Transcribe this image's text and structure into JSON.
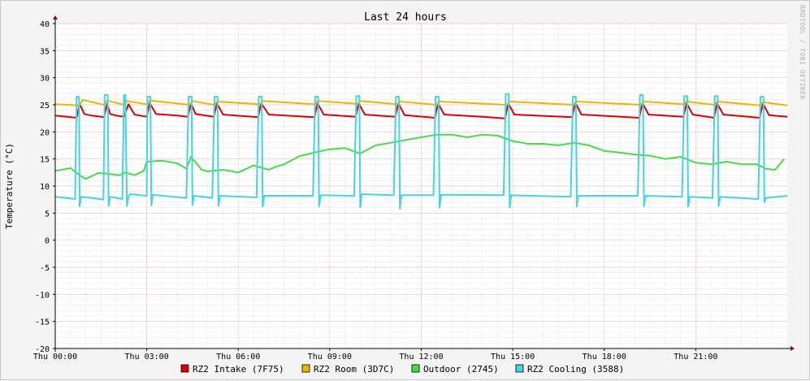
{
  "chart_data": {
    "type": "line",
    "title": "Last 24 hours",
    "ylabel": "Temperature (°C)",
    "xlabel": "",
    "ylim": [
      -20,
      40
    ],
    "xlim_hours": [
      0,
      24
    ],
    "y_ticks": [
      40,
      35,
      30,
      25,
      20,
      15,
      10,
      5,
      0,
      -5,
      -10,
      -15,
      -20
    ],
    "x_ticks": [
      {
        "h": 0,
        "label": "Thu 00:00"
      },
      {
        "h": 3,
        "label": "Thu 03:00"
      },
      {
        "h": 6,
        "label": "Thu 06:00"
      },
      {
        "h": 9,
        "label": "Thu 09:00"
      },
      {
        "h": 12,
        "label": "Thu 12:00"
      },
      {
        "h": 15,
        "label": "Thu 15:00"
      },
      {
        "h": 18,
        "label": "Thu 18:00"
      },
      {
        "h": 21,
        "label": "Thu 21:00"
      }
    ],
    "grid": true,
    "legend_position": "bottom",
    "watermark": "RRDTOOL / TOBI OETIKER",
    "defrost_cycles_hours": [
      0.72,
      1.62,
      2.27,
      3.02,
      4.37,
      5.22,
      6.67,
      8.52,
      9.87,
      11.17,
      12.47,
      14.77,
      16.97,
      19.17,
      20.62,
      21.62,
      23.12
    ],
    "series": [
      {
        "name": "RZ2 Intake (7F75)",
        "color": "#e00000",
        "x": [
          0,
          0.7,
          0.8,
          0.95,
          1.2,
          1.6,
          1.7,
          1.8,
          2.0,
          2.25,
          2.4,
          2.6,
          3.0,
          3.1,
          3.3,
          4.0,
          4.35,
          4.45,
          4.6,
          5.2,
          5.3,
          5.5,
          6.2,
          6.65,
          6.75,
          7.0,
          8.5,
          8.6,
          8.8,
          9.85,
          9.95,
          10.15,
          11.15,
          11.25,
          11.45,
          12.45,
          12.55,
          12.75,
          14.0,
          14.75,
          14.85,
          15.05,
          16.95,
          17.05,
          17.25,
          19.15,
          19.25,
          19.45,
          20.6,
          20.7,
          20.9,
          21.6,
          21.7,
          21.9,
          23.1,
          23.2,
          23.4,
          24.0
        ],
        "y": [
          23.0,
          22.6,
          25.2,
          23.3,
          23.0,
          22.7,
          25.2,
          23.3,
          23.0,
          22.8,
          25.1,
          23.2,
          22.8,
          25.3,
          23.3,
          23.0,
          22.8,
          25.3,
          23.3,
          22.8,
          25.3,
          23.2,
          22.9,
          22.7,
          25.3,
          23.2,
          22.7,
          25.3,
          23.2,
          22.8,
          25.3,
          23.2,
          22.8,
          25.3,
          23.1,
          22.6,
          25.3,
          23.2,
          22.8,
          22.5,
          25.3,
          23.2,
          22.7,
          25.4,
          23.2,
          22.6,
          25.4,
          23.2,
          22.8,
          25.3,
          23.2,
          22.6,
          25.3,
          23.2,
          22.6,
          25.3,
          23.1,
          22.8
        ]
      },
      {
        "name": "RZ2 Room (3D7C)",
        "color": "#e8b800",
        "x": [
          0,
          0.8,
          0.9,
          1.6,
          1.7,
          2.25,
          2.35,
          3.0,
          3.1,
          4.4,
          4.5,
          5.2,
          5.3,
          6.7,
          6.8,
          8.5,
          8.6,
          9.9,
          10.0,
          11.2,
          11.3,
          12.5,
          12.6,
          14.8,
          14.9,
          17.0,
          17.1,
          19.2,
          19.3,
          20.6,
          20.7,
          21.6,
          21.7,
          23.1,
          23.2,
          24.0
        ],
        "y": [
          25.1,
          24.9,
          25.9,
          25.0,
          25.8,
          25.0,
          25.7,
          25.1,
          25.8,
          25.0,
          25.7,
          25.0,
          25.6,
          25.1,
          25.7,
          25.1,
          25.7,
          25.2,
          25.7,
          25.1,
          25.6,
          25.0,
          25.6,
          25.0,
          25.6,
          25.0,
          25.6,
          25.0,
          25.6,
          25.1,
          25.6,
          25.0,
          25.6,
          24.9,
          25.5,
          24.9
        ]
      },
      {
        "name": "Outdoor (2745)",
        "color": "#44dd44",
        "x": [
          0,
          0.5,
          0.8,
          1.0,
          1.4,
          1.7,
          2.1,
          2.3,
          2.6,
          2.9,
          3.0,
          3.5,
          4.0,
          4.3,
          4.45,
          4.8,
          5.0,
          5.5,
          6.0,
          6.5,
          7.0,
          7.2,
          7.5,
          8.0,
          8.5,
          9.0,
          9.5,
          10.0,
          10.5,
          11.0,
          11.5,
          12.0,
          12.5,
          13.0,
          13.5,
          14.0,
          14.5,
          15.0,
          15.5,
          16.0,
          16.5,
          17.0,
          17.5,
          18.0,
          18.5,
          19.0,
          19.5,
          20.0,
          20.5,
          21.0,
          21.5,
          22.0,
          22.5,
          23.0,
          23.3,
          23.6,
          23.9
        ],
        "y": [
          12.8,
          13.3,
          12.0,
          11.3,
          12.4,
          12.3,
          12.0,
          12.5,
          12.0,
          12.8,
          14.5,
          14.7,
          14.2,
          13.2,
          15.4,
          13.0,
          12.7,
          13.0,
          12.5,
          13.8,
          13.0,
          13.5,
          14.0,
          15.5,
          16.2,
          16.8,
          17.0,
          16.0,
          17.5,
          18.0,
          18.5,
          19.0,
          19.5,
          19.5,
          19.0,
          19.5,
          19.3,
          18.3,
          17.8,
          17.8,
          17.5,
          18.0,
          17.5,
          16.5,
          16.2,
          15.8,
          15.6,
          15.0,
          15.4,
          14.3,
          14.0,
          14.5,
          14.0,
          14.0,
          13.2,
          13.0,
          15.0
        ]
      },
      {
        "name": "RZ2 Cooling (3588)",
        "color": "#44d4e4",
        "x": [
          0,
          0.65,
          0.7,
          0.78,
          0.8,
          0.85,
          1.2,
          1.58,
          1.62,
          1.72,
          1.75,
          1.8,
          2.2,
          2.25,
          2.3,
          2.35,
          2.4,
          2.45,
          3.0,
          3.02,
          3.12,
          3.15,
          3.2,
          4.3,
          4.37,
          4.47,
          4.5,
          4.55,
          5.15,
          5.22,
          5.32,
          5.35,
          5.4,
          6.6,
          6.67,
          6.77,
          6.8,
          6.85,
          8.45,
          8.52,
          8.62,
          8.65,
          8.7,
          9.8,
          9.87,
          9.97,
          10.0,
          10.05,
          11.1,
          11.17,
          11.27,
          11.3,
          11.35,
          12.4,
          12.47,
          12.57,
          12.6,
          12.65,
          14.7,
          14.77,
          14.87,
          14.9,
          14.95,
          16.9,
          16.97,
          17.07,
          17.1,
          17.15,
          19.1,
          19.17,
          19.27,
          19.3,
          19.35,
          20.55,
          20.62,
          20.72,
          20.75,
          20.8,
          21.55,
          21.62,
          21.72,
          21.75,
          21.8,
          23.05,
          23.12,
          23.22,
          23.25,
          23.3,
          24.0
        ],
        "y": [
          8.0,
          7.6,
          26.5,
          26.5,
          6.2,
          8.0,
          7.8,
          7.5,
          26.8,
          26.8,
          6.3,
          8.0,
          7.6,
          26.8,
          26.8,
          6.3,
          8.0,
          8.5,
          8.2,
          26.5,
          26.5,
          6.4,
          8.4,
          7.8,
          26.5,
          26.5,
          6.5,
          8.2,
          7.8,
          26.5,
          26.5,
          6.3,
          8.2,
          7.9,
          26.5,
          26.5,
          6.2,
          8.2,
          8.2,
          26.5,
          26.5,
          6.2,
          8.3,
          8.2,
          26.6,
          26.6,
          6.1,
          8.5,
          8.3,
          26.5,
          26.5,
          5.8,
          8.3,
          8.3,
          26.5,
          26.5,
          6.0,
          8.4,
          8.3,
          27.0,
          27.0,
          6.0,
          8.3,
          8.0,
          26.5,
          26.5,
          6.2,
          8.2,
          8.2,
          26.8,
          26.8,
          6.2,
          8.2,
          8.0,
          26.6,
          26.6,
          6.2,
          8.0,
          7.8,
          26.6,
          26.6,
          6.3,
          8.0,
          7.6,
          26.5,
          26.5,
          7.0,
          7.8,
          8.2
        ]
      }
    ]
  }
}
